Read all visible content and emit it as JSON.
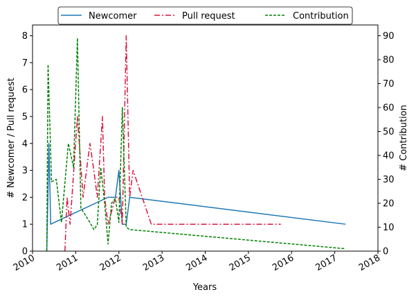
{
  "chart_data": {
    "type": "line",
    "xlabel": "Years",
    "ylabel_left": "# Newcomer / Pull request",
    "ylabel_right": "# Contribution",
    "xlim": [
      2010,
      2018
    ],
    "ylim_left": [
      0,
      8.4
    ],
    "ylim_right": [
      0,
      94.5
    ],
    "x_ticks": [
      "2010",
      "2011",
      "2012",
      "2013",
      "2014",
      "2015",
      "2016",
      "2017",
      "2018"
    ],
    "y_ticks_left": [
      "0",
      "1",
      "2",
      "3",
      "4",
      "5",
      "6",
      "7",
      "8"
    ],
    "y_ticks_right": [
      "0",
      "10",
      "20",
      "30",
      "40",
      "50",
      "60",
      "70",
      "80",
      "90"
    ],
    "legend_position": "top-center",
    "grid": false,
    "series": [
      {
        "name": "Newcomer",
        "axis": "left",
        "color": "#1f77b4",
        "style": "solid",
        "x": [
          2010.33,
          2010.38,
          2010.42,
          2011.75,
          2011.92,
          2012.0,
          2012.08,
          2012.17,
          2012.25,
          2017.25
        ],
        "y": [
          0,
          4,
          1,
          2,
          2,
          3,
          1,
          1,
          2,
          1
        ]
      },
      {
        "name": "Pull request",
        "axis": "left",
        "color": "#dc143c",
        "style": "dashdot",
        "x": [
          2010.75,
          2010.8,
          2010.87,
          2011.04,
          2011.17,
          2011.33,
          2011.42,
          2011.5,
          2011.62,
          2011.67,
          2011.75,
          2011.92,
          2012.0,
          2012.08,
          2012.17,
          2012.25,
          2012.33,
          2012.75,
          2015.75
        ],
        "y": [
          0,
          2,
          1,
          5,
          2,
          4,
          3,
          2,
          5,
          2,
          1,
          2,
          2,
          1,
          8,
          2,
          3,
          1,
          1
        ]
      },
      {
        "name": "Contribution",
        "axis": "right",
        "color": "#008000",
        "style": "dashed",
        "x": [
          2010.33,
          2010.36,
          2010.44,
          2010.55,
          2010.67,
          2010.83,
          2010.95,
          2011.04,
          2011.12,
          2011.33,
          2011.42,
          2011.5,
          2011.58,
          2011.67,
          2011.75,
          2011.83,
          2011.92,
          2012.0,
          2012.08,
          2012.17,
          2012.25,
          2017.25
        ],
        "y": [
          0,
          78,
          29,
          30,
          12,
          45,
          35,
          89,
          18,
          12,
          9,
          11,
          35,
          20,
          3,
          20,
          22,
          12,
          60,
          10,
          9,
          1
        ]
      }
    ]
  }
}
